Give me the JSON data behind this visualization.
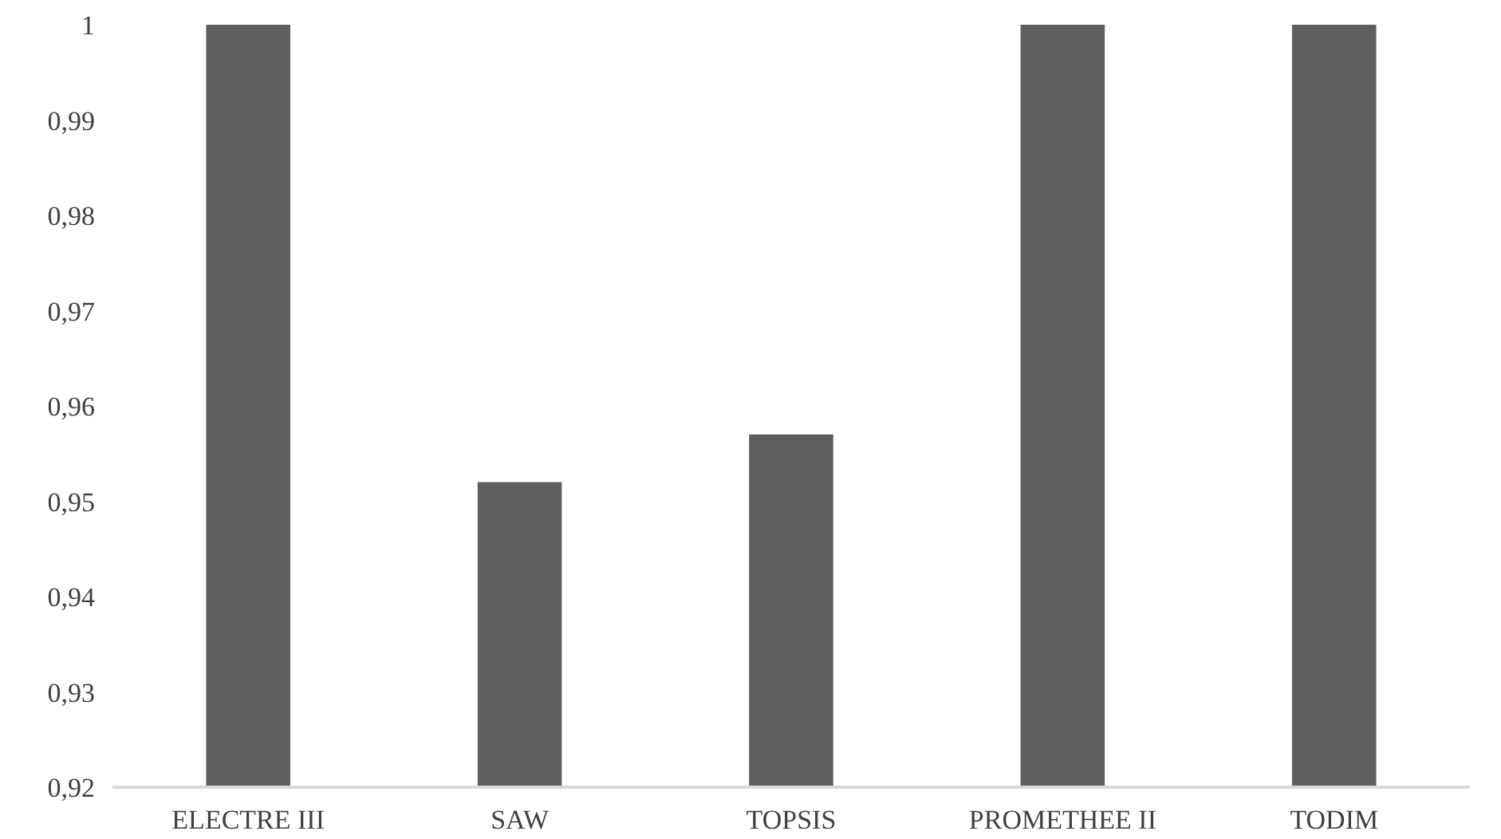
{
  "chart_data": {
    "type": "bar",
    "categories": [
      "ELECTRE III",
      "SAW",
      "TOPSIS",
      "PROMETHEE II",
      "TODIM"
    ],
    "values": [
      1,
      0.952,
      0.957,
      1,
      1
    ],
    "color": "#5e5e5e",
    "ylim": [
      0.92,
      1
    ],
    "yticks": [
      {
        "value": 0.92,
        "label": "0,92"
      },
      {
        "value": 0.93,
        "label": "0,93"
      },
      {
        "value": 0.94,
        "label": "0,94"
      },
      {
        "value": 0.95,
        "label": "0,95"
      },
      {
        "value": 0.96,
        "label": "0,96"
      },
      {
        "value": 0.97,
        "label": "0,97"
      },
      {
        "value": 0.98,
        "label": "0,98"
      },
      {
        "value": 0.99,
        "label": "0,99"
      },
      {
        "value": 1,
        "label": "1"
      }
    ],
    "grid": false
  }
}
